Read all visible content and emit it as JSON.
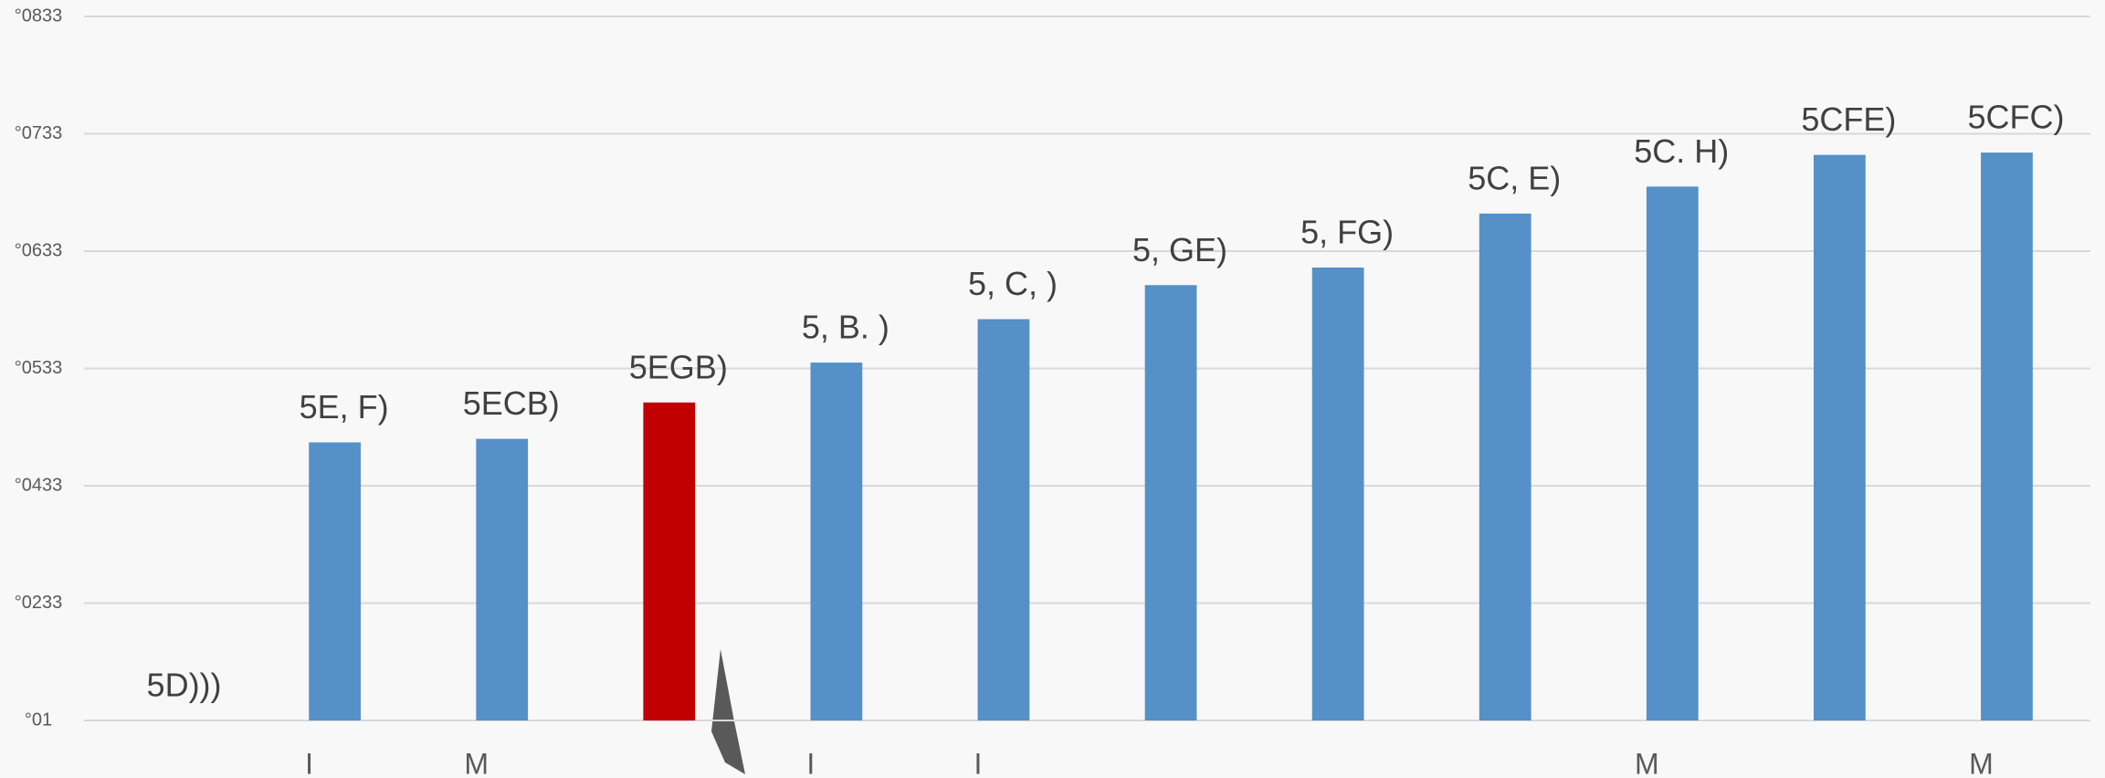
{
  "chart_data": {
    "type": "bar",
    "categories": [
      null,
      "I",
      "M",
      null,
      "I",
      "I",
      null,
      null,
      null,
      "M",
      null,
      "M"
    ],
    "values": [
      0,
      2.37,
      2.4,
      2.71,
      3.05,
      3.42,
      3.71,
      3.86,
      4.32,
      4.55,
      4.82,
      4.84
    ],
    "value_labels": [
      "5D)))",
      "5E, F)",
      "5ECB)",
      "5EGB)",
      "5, B. )",
      "5, C, )",
      "5, GE)",
      "5, FG)",
      "5C, E)",
      "5C. H)",
      "5CFE)",
      "5CFC)"
    ],
    "colors": [
      "#5590c8",
      "#5590c8",
      "#5590c8",
      "#c00000",
      "#5590c8",
      "#5590c8",
      "#5590c8",
      "#5590c8",
      "#5590c8",
      "#5590c8",
      "#5590c8",
      "#5590c8"
    ],
    "ylim": [
      0,
      6
    ],
    "yticks": [
      {
        "value": 0,
        "label": "°01"
      },
      {
        "value": 1,
        "label": "°0233"
      },
      {
        "value": 2,
        "label": "°0433"
      },
      {
        "value": 3,
        "label": "°0533"
      },
      {
        "value": 4,
        "label": "°0633"
      },
      {
        "value": 5,
        "label": "°0733"
      },
      {
        "value": 6,
        "label": "°0833"
      }
    ],
    "grid": true
  }
}
